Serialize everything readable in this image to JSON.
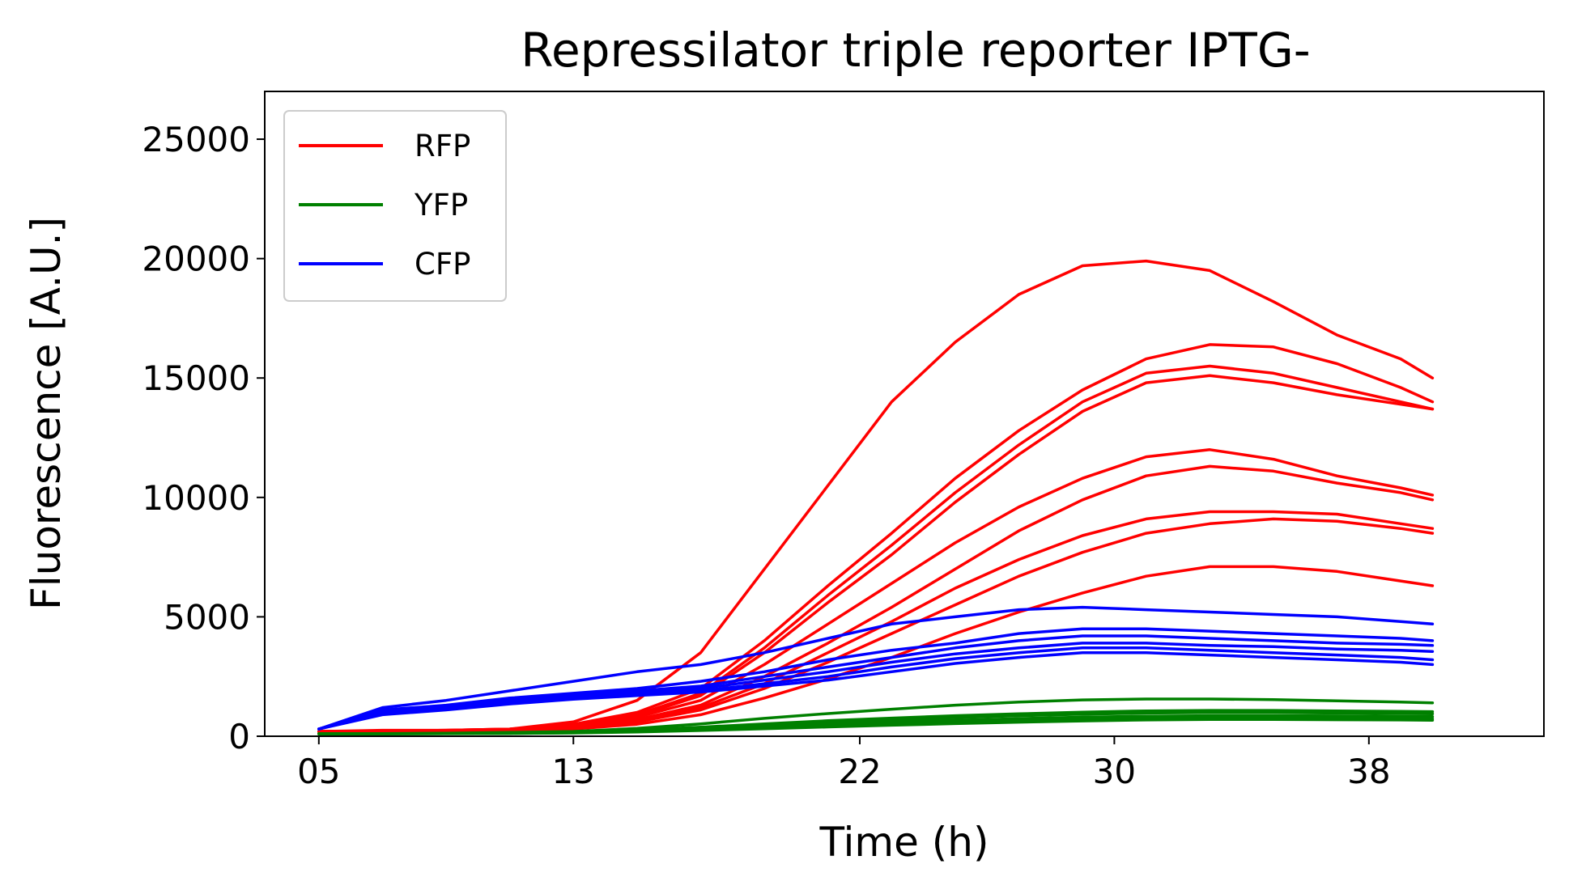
{
  "chart_data": {
    "type": "line",
    "title": "Repressilator triple reporter IPTG-",
    "xlabel": "Time (h)",
    "ylabel": "Fluorescence [A.U.]",
    "xlim": [
      3.3,
      43.5
    ],
    "ylim": [
      0,
      27000
    ],
    "xticks": [
      5,
      13,
      22,
      30,
      38
    ],
    "xtick_labels": [
      "05",
      "13",
      "22",
      "30",
      "38"
    ],
    "yticks": [
      0,
      5000,
      10000,
      15000,
      20000,
      25000
    ],
    "ytick_labels": [
      "0",
      "5000",
      "10000",
      "15000",
      "20000",
      "25000"
    ],
    "grid": false,
    "legend": {
      "position": "top-left",
      "entries": [
        {
          "label": "RFP",
          "color": "#ff0000"
        },
        {
          "label": "YFP",
          "color": "#008000"
        },
        {
          "label": "CFP",
          "color": "#0000ff"
        }
      ]
    },
    "x": [
      5,
      7,
      9,
      11,
      13,
      15,
      17,
      19,
      21,
      23,
      25,
      27,
      29,
      31,
      33,
      35,
      37,
      39,
      40
    ],
    "series": [
      {
        "group": "RFP",
        "color": "#ff0000",
        "values": [
          200,
          250,
          250,
          300,
          600,
          1500,
          3500,
          7000,
          10500,
          14000,
          16500,
          18500,
          19700,
          19900,
          19500,
          18200,
          16800,
          15800,
          15000
        ]
      },
      {
        "group": "RFP",
        "color": "#ff0000",
        "values": [
          200,
          220,
          250,
          300,
          500,
          1000,
          2000,
          4000,
          6300,
          8500,
          10800,
          12800,
          14500,
          15800,
          16400,
          16300,
          15600,
          14600,
          14000
        ]
      },
      {
        "group": "RFP",
        "color": "#ff0000",
        "values": [
          200,
          220,
          250,
          300,
          450,
          900,
          1800,
          3700,
          5900,
          8000,
          10200,
          12200,
          14000,
          15200,
          15500,
          15200,
          14600,
          14000,
          13700
        ]
      },
      {
        "group": "RFP",
        "color": "#ff0000",
        "values": [
          200,
          220,
          240,
          280,
          420,
          850,
          1700,
          3500,
          5600,
          7600,
          9800,
          11800,
          13600,
          14800,
          15100,
          14800,
          14300,
          13900,
          13700
        ]
      },
      {
        "group": "RFP",
        "color": "#ff0000",
        "values": [
          200,
          210,
          230,
          270,
          400,
          800,
          1500,
          3000,
          4700,
          6400,
          8100,
          9600,
          10800,
          11700,
          12000,
          11600,
          10900,
          10400,
          10100
        ]
      },
      {
        "group": "RFP",
        "color": "#ff0000",
        "values": [
          200,
          210,
          220,
          260,
          380,
          700,
          1300,
          2500,
          3900,
          5400,
          7000,
          8600,
          9900,
          10900,
          11300,
          11100,
          10600,
          10200,
          9900
        ]
      },
      {
        "group": "RFP",
        "color": "#ff0000",
        "values": [
          200,
          210,
          220,
          250,
          360,
          650,
          1200,
          2200,
          3500,
          4800,
          6200,
          7400,
          8400,
          9100,
          9400,
          9400,
          9300,
          8900,
          8700
        ]
      },
      {
        "group": "RFP",
        "color": "#ff0000",
        "values": [
          200,
          205,
          215,
          240,
          340,
          600,
          1100,
          2000,
          3100,
          4300,
          5500,
          6700,
          7700,
          8500,
          8900,
          9100,
          9000,
          8700,
          8500
        ]
      },
      {
        "group": "RFP",
        "color": "#ff0000",
        "values": [
          200,
          205,
          210,
          230,
          300,
          500,
          900,
          1600,
          2400,
          3300,
          4300,
          5200,
          6000,
          6700,
          7100,
          7100,
          6900,
          6500,
          6300
        ]
      },
      {
        "group": "YFP",
        "color": "#008000",
        "values": [
          100,
          110,
          130,
          160,
          200,
          330,
          520,
          750,
          950,
          1130,
          1300,
          1430,
          1520,
          1560,
          1560,
          1530,
          1480,
          1430,
          1400
        ]
      },
      {
        "group": "YFP",
        "color": "#008000",
        "values": [
          100,
          105,
          120,
          140,
          180,
          260,
          380,
          520,
          650,
          760,
          860,
          940,
          1010,
          1060,
          1080,
          1080,
          1060,
          1040,
          1030
        ]
      },
      {
        "group": "YFP",
        "color": "#008000",
        "values": [
          100,
          105,
          115,
          130,
          160,
          230,
          330,
          450,
          570,
          680,
          780,
          860,
          920,
          970,
          990,
          990,
          970,
          950,
          940
        ]
      },
      {
        "group": "YFP",
        "color": "#008000",
        "values": [
          100,
          103,
          110,
          125,
          150,
          210,
          300,
          400,
          500,
          590,
          670,
          740,
          800,
          840,
          860,
          860,
          850,
          830,
          820
        ]
      },
      {
        "group": "YFP",
        "color": "#008000",
        "values": [
          100,
          102,
          108,
          120,
          145,
          195,
          270,
          360,
          450,
          530,
          600,
          660,
          710,
          750,
          770,
          770,
          760,
          740,
          730
        ]
      },
      {
        "group": "YFP",
        "color": "#008000",
        "values": [
          100,
          101,
          105,
          115,
          135,
          180,
          240,
          310,
          390,
          460,
          530,
          590,
          640,
          680,
          700,
          700,
          690,
          680,
          670
        ]
      },
      {
        "group": "CFP",
        "color": "#0000ff",
        "values": [
          300,
          1200,
          1500,
          1900,
          2300,
          2700,
          3000,
          3500,
          4100,
          4700,
          5000,
          5300,
          5400,
          5300,
          5200,
          5100,
          5000,
          4800,
          4700
        ]
      },
      {
        "group": "CFP",
        "color": "#0000ff",
        "values": [
          300,
          1100,
          1300,
          1600,
          1800,
          2000,
          2300,
          2700,
          3200,
          3600,
          3900,
          4300,
          4500,
          4500,
          4400,
          4300,
          4200,
          4100,
          4000
        ]
      },
      {
        "group": "CFP",
        "color": "#0000ff",
        "values": [
          300,
          1050,
          1250,
          1500,
          1750,
          1900,
          2100,
          2500,
          2900,
          3300,
          3700,
          4000,
          4200,
          4200,
          4100,
          4000,
          3900,
          3850,
          3800
        ]
      },
      {
        "group": "CFP",
        "color": "#0000ff",
        "values": [
          300,
          1000,
          1200,
          1450,
          1650,
          1800,
          2000,
          2350,
          2700,
          3100,
          3450,
          3700,
          3900,
          3900,
          3800,
          3750,
          3650,
          3600,
          3550
        ]
      },
      {
        "group": "CFP",
        "color": "#0000ff",
        "values": [
          300,
          950,
          1150,
          1400,
          1600,
          1750,
          1900,
          2200,
          2500,
          2900,
          3250,
          3500,
          3700,
          3700,
          3600,
          3500,
          3400,
          3300,
          3200
        ]
      },
      {
        "group": "CFP",
        "color": "#0000ff",
        "values": [
          300,
          900,
          1100,
          1350,
          1550,
          1700,
          1850,
          2100,
          2350,
          2700,
          3050,
          3300,
          3500,
          3500,
          3400,
          3300,
          3200,
          3100,
          3000
        ]
      }
    ]
  }
}
